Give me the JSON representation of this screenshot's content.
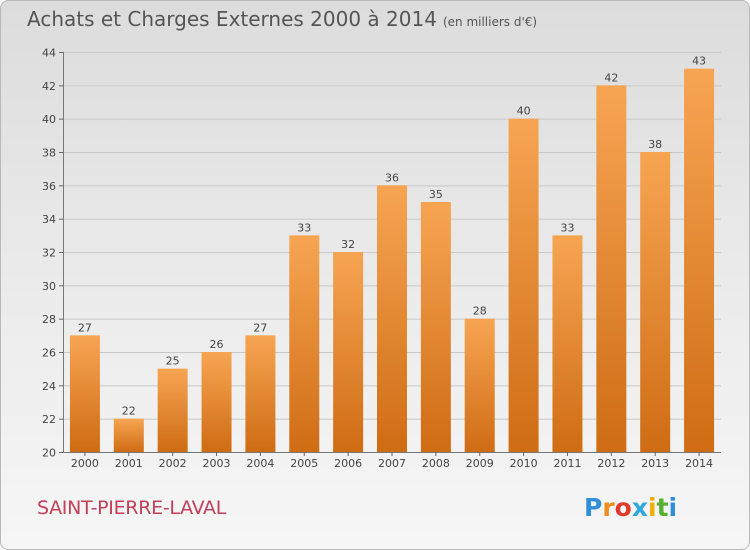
{
  "header": {
    "title": "Achats et Charges Externes 2000 à 2014",
    "subtitle": "(en milliers d'€)"
  },
  "footer": {
    "commune": "SAINT-PIERRE-LAVAL",
    "logo_letters": [
      "P",
      "r",
      "o",
      "x",
      "i",
      "t",
      "i"
    ],
    "logo_colors": [
      "#2f8fd8",
      "#f08c1c",
      "#e03a2a",
      "#2fa8e0",
      "#f0b000",
      "#58b030",
      "#2f8fd8"
    ]
  },
  "colors": {
    "bar_top": "#f7a553",
    "bar_bottom": "#cf6c14",
    "grid": "#c8c8c8",
    "axis_text": "#444444"
  },
  "chart_data": {
    "type": "bar",
    "title": "Achats et Charges Externes 2000 à 2014",
    "subtitle": "(en milliers d'€)",
    "categories": [
      "2000",
      "2001",
      "2002",
      "2003",
      "2004",
      "2005",
      "2006",
      "2007",
      "2008",
      "2009",
      "2010",
      "2011",
      "2012",
      "2013",
      "2014"
    ],
    "values": [
      27,
      22,
      25,
      26,
      27,
      33,
      32,
      36,
      35,
      28,
      40,
      33,
      42,
      38,
      43
    ],
    "ylim": [
      20,
      44
    ],
    "yticks": [
      20,
      22,
      24,
      26,
      28,
      30,
      32,
      34,
      36,
      38,
      40,
      42,
      44
    ],
    "grid": true,
    "data_labels": true
  }
}
